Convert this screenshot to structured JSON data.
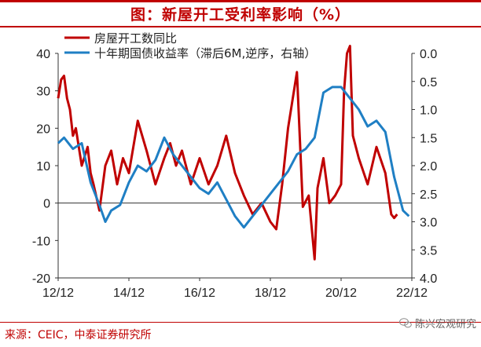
{
  "header": {
    "title": "图：新屋开工受利率影响（%）"
  },
  "footer": {
    "source": "来源：CEIC，中泰证券研究所",
    "watermark": "陈兴宏观研究"
  },
  "colors": {
    "accent": "#c00000",
    "series1": "#c00000",
    "series2": "#1f7fc4"
  },
  "chart_data": {
    "type": "line",
    "title": "",
    "x_ticks": [
      "12/12",
      "14/12",
      "16/12",
      "18/12",
      "20/12",
      "22/12"
    ],
    "x_range": [
      "2012-12",
      "2022-12"
    ],
    "left_axis": {
      "ticks": [
        "-20",
        "-10",
        "0",
        "10",
        "20",
        "30",
        "40"
      ],
      "range": [
        -20,
        40
      ]
    },
    "right_axis": {
      "ticks": [
        "0.0",
        "0.5",
        "1.0",
        "1.5",
        "2.0",
        "2.5",
        "3.0",
        "3.5",
        "4.0"
      ],
      "range": [
        0.0,
        4.0
      ],
      "inverted": true
    },
    "legend_placement": "top-left",
    "series": [
      {
        "name": "房屋开工数同比",
        "axis": "left",
        "x": [
          "2012-12",
          "2013-01",
          "2013-02",
          "2013-03",
          "2013-04",
          "2013-05",
          "2013-06",
          "2013-08",
          "2013-10",
          "2013-11",
          "2013-12",
          "2014-02",
          "2014-04",
          "2014-06",
          "2014-08",
          "2014-10",
          "2014-12",
          "2015-03",
          "2015-06",
          "2015-09",
          "2015-12",
          "2016-02",
          "2016-04",
          "2016-06",
          "2016-09",
          "2016-12",
          "2017-03",
          "2017-06",
          "2017-09",
          "2017-12",
          "2018-03",
          "2018-06",
          "2018-09",
          "2018-12",
          "2019-02",
          "2019-04",
          "2019-06",
          "2019-09",
          "2019-11",
          "2020-01",
          "2020-03",
          "2020-04",
          "2020-05",
          "2020-06",
          "2020-08",
          "2020-10",
          "2020-12",
          "2021-01",
          "2021-02",
          "2021-03",
          "2021-04",
          "2021-06",
          "2021-09",
          "2021-12",
          "2022-03",
          "2022-05",
          "2022-06",
          "2022-07"
        ],
        "values": [
          28,
          33,
          34,
          28,
          25,
          18,
          20,
          10,
          15,
          8,
          5,
          -2,
          10,
          14,
          5,
          12,
          8,
          22,
          14,
          5,
          12,
          16,
          10,
          14,
          5,
          12,
          5,
          10,
          18,
          8,
          2,
          -3,
          0,
          -5,
          -7,
          5,
          20,
          35,
          -1,
          2,
          -15,
          4,
          8,
          12,
          0,
          2,
          5,
          30,
          40,
          42,
          18,
          12,
          5,
          15,
          8,
          -3,
          -4,
          -3
        ]
      },
      {
        "name": "十年期国债收益率（滞后6M,逆序，右轴）",
        "axis": "right",
        "x": [
          "2012-12",
          "2013-02",
          "2013-05",
          "2013-08",
          "2013-11",
          "2014-02",
          "2014-04",
          "2014-06",
          "2014-09",
          "2014-12",
          "2015-03",
          "2015-06",
          "2015-09",
          "2015-12",
          "2016-03",
          "2016-06",
          "2016-09",
          "2016-12",
          "2017-03",
          "2017-06",
          "2017-09",
          "2017-12",
          "2018-03",
          "2018-06",
          "2018-09",
          "2018-12",
          "2019-03",
          "2019-06",
          "2019-09",
          "2019-12",
          "2020-03",
          "2020-06",
          "2020-09",
          "2020-12",
          "2021-03",
          "2021-06",
          "2021-09",
          "2021-12",
          "2022-03",
          "2022-06",
          "2022-09",
          "2022-11"
        ],
        "values": [
          1.6,
          1.5,
          1.7,
          1.6,
          2.3,
          2.7,
          3.0,
          2.8,
          2.7,
          2.3,
          2.0,
          2.1,
          1.9,
          1.5,
          1.8,
          2.0,
          2.2,
          2.4,
          2.5,
          2.3,
          2.6,
          2.9,
          3.1,
          2.9,
          2.7,
          2.5,
          2.3,
          2.1,
          1.8,
          1.7,
          1.5,
          0.7,
          0.6,
          0.6,
          0.8,
          1.0,
          1.3,
          1.2,
          1.4,
          2.2,
          2.8,
          2.9
        ]
      }
    ]
  }
}
